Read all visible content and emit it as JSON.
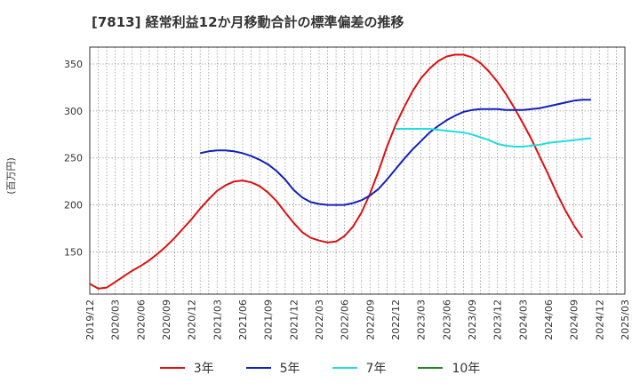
{
  "title": "[7813]  経常利益12か月移動合計の標準偏差の推移",
  "chart_data": {
    "type": "line",
    "ylabel": "(百万円)",
    "ylim": [
      105,
      368
    ],
    "yticks": [
      150,
      200,
      250,
      300,
      350
    ],
    "xticks": [
      "2019/12",
      "2020/03",
      "2020/06",
      "2020/09",
      "2020/12",
      "2021/03",
      "2021/06",
      "2021/09",
      "2021/12",
      "2022/03",
      "2022/06",
      "2022/09",
      "2022/12",
      "2023/03",
      "2023/06",
      "2023/09",
      "2023/12",
      "2024/03",
      "2024/06",
      "2024/09",
      "2024/12",
      "2025/03"
    ],
    "grid": true,
    "legend_position": "bottom",
    "series": [
      {
        "name": "3年",
        "color": "#dd1111",
        "points": [
          [
            "2019/12",
            116
          ],
          [
            "2020/01",
            111
          ],
          [
            "2020/02",
            112
          ],
          [
            "2020/03",
            118
          ],
          [
            "2020/04",
            124
          ],
          [
            "2020/05",
            130
          ],
          [
            "2020/06",
            135
          ],
          [
            "2020/07",
            141
          ],
          [
            "2020/08",
            148
          ],
          [
            "2020/09",
            156
          ],
          [
            "2020/10",
            165
          ],
          [
            "2020/11",
            175
          ],
          [
            "2020/12",
            185
          ],
          [
            "2021/01",
            196
          ],
          [
            "2021/02",
            206
          ],
          [
            "2021/03",
            215
          ],
          [
            "2021/04",
            221
          ],
          [
            "2021/05",
            225
          ],
          [
            "2021/06",
            226
          ],
          [
            "2021/07",
            224
          ],
          [
            "2021/08",
            220
          ],
          [
            "2021/09",
            213
          ],
          [
            "2021/10",
            204
          ],
          [
            "2021/11",
            192
          ],
          [
            "2021/12",
            181
          ],
          [
            "2022/01",
            171
          ],
          [
            "2022/02",
            165
          ],
          [
            "2022/03",
            162
          ],
          [
            "2022/04",
            160
          ],
          [
            "2022/05",
            161
          ],
          [
            "2022/06",
            167
          ],
          [
            "2022/07",
            177
          ],
          [
            "2022/08",
            192
          ],
          [
            "2022/09",
            212
          ],
          [
            "2022/10",
            236
          ],
          [
            "2022/11",
            262
          ],
          [
            "2022/12",
            285
          ],
          [
            "2023/01",
            304
          ],
          [
            "2023/02",
            321
          ],
          [
            "2023/03",
            335
          ],
          [
            "2023/04",
            345
          ],
          [
            "2023/05",
            353
          ],
          [
            "2023/06",
            358
          ],
          [
            "2023/07",
            360
          ],
          [
            "2023/08",
            360
          ],
          [
            "2023/09",
            357
          ],
          [
            "2023/10",
            351
          ],
          [
            "2023/11",
            342
          ],
          [
            "2023/12",
            331
          ],
          [
            "2024/01",
            318
          ],
          [
            "2024/02",
            303
          ],
          [
            "2024/03",
            287
          ],
          [
            "2024/04",
            270
          ],
          [
            "2024/05",
            251
          ],
          [
            "2024/06",
            232
          ],
          [
            "2024/07",
            212
          ],
          [
            "2024/08",
            194
          ],
          [
            "2024/09",
            178
          ],
          [
            "2024/10",
            165
          ]
        ]
      },
      {
        "name": "5年",
        "color": "#1122bb",
        "points": [
          [
            "2021/01",
            255
          ],
          [
            "2021/02",
            257
          ],
          [
            "2021/03",
            258
          ],
          [
            "2021/04",
            258
          ],
          [
            "2021/05",
            257
          ],
          [
            "2021/06",
            255
          ],
          [
            "2021/07",
            252
          ],
          [
            "2021/08",
            248
          ],
          [
            "2021/09",
            243
          ],
          [
            "2021/10",
            236
          ],
          [
            "2021/11",
            227
          ],
          [
            "2021/12",
            216
          ],
          [
            "2022/01",
            208
          ],
          [
            "2022/02",
            203
          ],
          [
            "2022/03",
            201
          ],
          [
            "2022/04",
            200
          ],
          [
            "2022/05",
            200
          ],
          [
            "2022/06",
            200
          ],
          [
            "2022/07",
            202
          ],
          [
            "2022/08",
            205
          ],
          [
            "2022/09",
            210
          ],
          [
            "2022/10",
            217
          ],
          [
            "2022/11",
            227
          ],
          [
            "2022/12",
            238
          ],
          [
            "2023/01",
            249
          ],
          [
            "2023/02",
            259
          ],
          [
            "2023/03",
            268
          ],
          [
            "2023/04",
            277
          ],
          [
            "2023/05",
            284
          ],
          [
            "2023/06",
            290
          ],
          [
            "2023/07",
            295
          ],
          [
            "2023/08",
            299
          ],
          [
            "2023/09",
            301
          ],
          [
            "2023/10",
            302
          ],
          [
            "2023/11",
            302
          ],
          [
            "2023/12",
            302
          ],
          [
            "2024/01",
            301
          ],
          [
            "2024/02",
            301
          ],
          [
            "2024/03",
            301
          ],
          [
            "2024/04",
            302
          ],
          [
            "2024/05",
            303
          ],
          [
            "2024/06",
            305
          ],
          [
            "2024/07",
            307
          ],
          [
            "2024/08",
            309
          ],
          [
            "2024/09",
            311
          ],
          [
            "2024/10",
            312
          ],
          [
            "2024/11",
            312
          ]
        ]
      },
      {
        "name": "7年",
        "color": "#22dddd",
        "points": [
          [
            "2022/12",
            281
          ],
          [
            "2023/01",
            281
          ],
          [
            "2023/02",
            281
          ],
          [
            "2023/03",
            281
          ],
          [
            "2023/04",
            281
          ],
          [
            "2023/05",
            280
          ],
          [
            "2023/06",
            279
          ],
          [
            "2023/07",
            278
          ],
          [
            "2023/08",
            277
          ],
          [
            "2023/09",
            275
          ],
          [
            "2023/10",
            272
          ],
          [
            "2023/11",
            269
          ],
          [
            "2023/12",
            265
          ],
          [
            "2024/01",
            263
          ],
          [
            "2024/02",
            262
          ],
          [
            "2024/03",
            262
          ],
          [
            "2024/04",
            263
          ],
          [
            "2024/05",
            264
          ],
          [
            "2024/06",
            266
          ],
          [
            "2024/07",
            267
          ],
          [
            "2024/08",
            268
          ],
          [
            "2024/09",
            269
          ],
          [
            "2024/10",
            270
          ],
          [
            "2024/11",
            271
          ]
        ]
      },
      {
        "name": "10年",
        "color": "#228822",
        "points": []
      }
    ]
  }
}
